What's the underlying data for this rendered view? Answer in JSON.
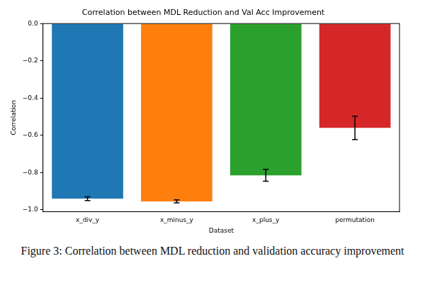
{
  "chart_data": {
    "type": "bar",
    "title": "Correlation between MDL Reduction and Val Acc Improvement",
    "caption": "Figure 3: Correlation between MDL reduction and validation accuracy improvement",
    "x_label": "Dataset",
    "y_label": "Correlation",
    "categories": [
      "x_div_y",
      "x_minus_y",
      "x_plus_y",
      "permutation"
    ],
    "values": [
      -0.94,
      -0.955,
      -0.815,
      -0.56
    ],
    "errors": [
      0.01,
      0.008,
      0.032,
      0.063
    ],
    "colors": [
      "#1f77b4",
      "#ff7f0e",
      "#2ca02c",
      "#d62728"
    ],
    "ylim": [
      -1.01,
      0
    ],
    "yticks": [
      {
        "value": 0,
        "label": "0.0"
      },
      {
        "value": -0.2,
        "label": "−0.2"
      },
      {
        "value": -0.4,
        "label": "−0.4"
      },
      {
        "value": -0.6,
        "label": "−0.6"
      },
      {
        "value": -0.8,
        "label": "−0.8"
      },
      {
        "value": -1.0,
        "label": "−1.0"
      }
    ],
    "grid": false
  }
}
